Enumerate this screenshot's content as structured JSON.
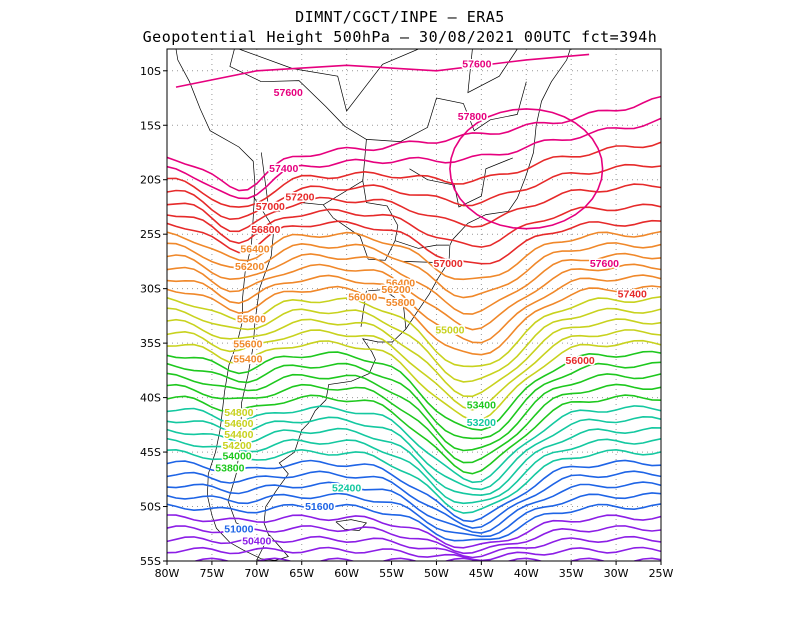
{
  "title": {
    "line1": "DIMNT/CGCT/INPE –  ERA5",
    "line2": "Geopotential Height 500hPa –  30/08/2021 00UTC fct=394h"
  },
  "axes": {
    "lon_ticks": [
      "80W",
      "75W",
      "70W",
      "65W",
      "60W",
      "55W",
      "50W",
      "45W",
      "40W",
      "35W",
      "30W",
      "25W"
    ],
    "lat_ticks": [
      "10S",
      "15S",
      "20S",
      "25S",
      "30S",
      "35S",
      "40S",
      "45S",
      "50S",
      "55S"
    ]
  },
  "colors": {
    "frame": "#000000",
    "grid": "#999999",
    "coast": "#000000",
    "pink": "#e6007e",
    "red": "#e62a2a",
    "orange": "#f0882a",
    "yellow": "#c8d21e",
    "green": "#1ec81e",
    "teal": "#14c8a0",
    "blue": "#1e64e6",
    "purple": "#8c1ee6"
  },
  "chart_data": {
    "type": "contour-map",
    "variable": "Geopotential Height 500hPa",
    "lon_range": [
      -80,
      -25
    ],
    "lat_range": [
      -55,
      -8
    ],
    "grid": true,
    "contour_labels": [
      {
        "text": "57600",
        "lon": -66.5,
        "lat": -12.3,
        "color": "pink"
      },
      {
        "text": "57600",
        "lon": -45.5,
        "lat": -9.7,
        "color": "pink"
      },
      {
        "text": "57800",
        "lon": -46,
        "lat": -14.5,
        "color": "pink"
      },
      {
        "text": "57400",
        "lon": -67,
        "lat": -19.3,
        "color": "pink"
      },
      {
        "text": "57200",
        "lon": -65.2,
        "lat": -21.9,
        "color": "red"
      },
      {
        "text": "57000",
        "lon": -68.5,
        "lat": -22.8,
        "color": "red"
      },
      {
        "text": "56800",
        "lon": -69,
        "lat": -24.9,
        "color": "red"
      },
      {
        "text": "56400",
        "lon": -70.2,
        "lat": -26.7,
        "color": "orange"
      },
      {
        "text": "56200",
        "lon": -70.8,
        "lat": -28.3,
        "color": "orange"
      },
      {
        "text": "57000",
        "lon": -48.7,
        "lat": -28,
        "color": "red"
      },
      {
        "text": "57600",
        "lon": -31.3,
        "lat": -28,
        "color": "pink"
      },
      {
        "text": "57400",
        "lon": -28.2,
        "lat": -30.8,
        "color": "red"
      },
      {
        "text": "56400",
        "lon": -54,
        "lat": -29.8,
        "color": "orange"
      },
      {
        "text": "56200",
        "lon": -54.5,
        "lat": -30.4,
        "color": "orange"
      },
      {
        "text": "56000",
        "lon": -58.2,
        "lat": -31.1,
        "color": "orange"
      },
      {
        "text": "55800",
        "lon": -54,
        "lat": -31.6,
        "color": "orange"
      },
      {
        "text": "55800",
        "lon": -70.6,
        "lat": -33.1,
        "color": "orange"
      },
      {
        "text": "55000",
        "lon": -48.5,
        "lat": -34.1,
        "color": "yellow"
      },
      {
        "text": "56000",
        "lon": -34,
        "lat": -36.9,
        "color": "red"
      },
      {
        "text": "55600",
        "lon": -71,
        "lat": -35.4,
        "color": "orange"
      },
      {
        "text": "55400",
        "lon": -71,
        "lat": -36.8,
        "color": "orange"
      },
      {
        "text": "54800",
        "lon": -72,
        "lat": -41.7,
        "color": "yellow"
      },
      {
        "text": "54600",
        "lon": -72,
        "lat": -42.7,
        "color": "yellow"
      },
      {
        "text": "54400",
        "lon": -72,
        "lat": -43.7,
        "color": "yellow"
      },
      {
        "text": "54200",
        "lon": -72.2,
        "lat": -44.7,
        "color": "yellow"
      },
      {
        "text": "54000",
        "lon": -72.2,
        "lat": -45.7,
        "color": "green"
      },
      {
        "text": "53400",
        "lon": -45,
        "lat": -41,
        "color": "green"
      },
      {
        "text": "53200",
        "lon": -45,
        "lat": -42.6,
        "color": "teal"
      },
      {
        "text": "53800",
        "lon": -73,
        "lat": -46.8,
        "color": "green"
      },
      {
        "text": "52400",
        "lon": -60,
        "lat": -48.6,
        "color": "teal"
      },
      {
        "text": "51600",
        "lon": -63,
        "lat": -50.3,
        "color": "blue"
      },
      {
        "text": "51000",
        "lon": -72,
        "lat": -52.4,
        "color": "blue"
      },
      {
        "text": "50400",
        "lon": -70,
        "lat": -53.5,
        "color": "purple"
      }
    ]
  }
}
